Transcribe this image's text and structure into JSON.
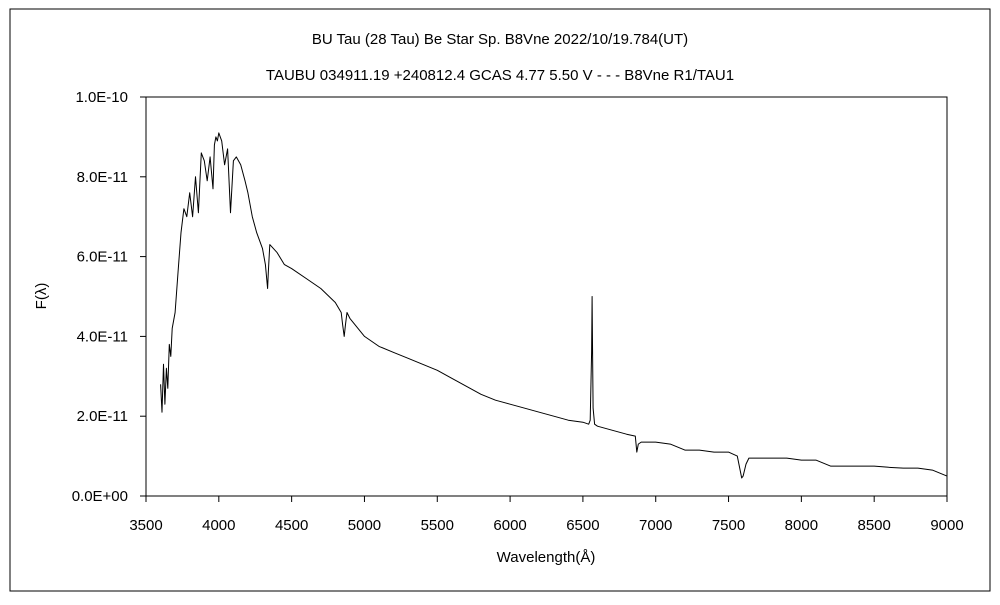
{
  "chart_data": {
    "type": "line",
    "title": "BU Tau (28 Tau)   Be Star   Sp. B8Vne   2022/10/19.784(UT)",
    "subtitle": "TAUBU 034911.19 +240812.4 GCAS 4.77 5.50 V - - - B8Vne R1/TAU1",
    "xlabel": "Wavelength(Å)",
    "ylabel": "F(λ)",
    "xlim": [
      3500,
      9000
    ],
    "ylim": [
      0,
      1e-10
    ],
    "x_ticks": [
      3500,
      4000,
      4500,
      5000,
      5500,
      6000,
      6500,
      7000,
      7500,
      8000,
      8500,
      9000
    ],
    "x_tick_labels": [
      "3500",
      "4000",
      "4500",
      "5000",
      "5500",
      "6000",
      "6500",
      "7000",
      "7500",
      "8000",
      "8500",
      "9000"
    ],
    "y_ticks": [
      0,
      2e-11,
      4e-11,
      6e-11,
      8e-11,
      1e-10
    ],
    "y_tick_labels": [
      "0.0E+00",
      "2.0E-11",
      "4.0E-11",
      "6.0E-11",
      "8.0E-11",
      "1.0E-10"
    ],
    "grid": false,
    "legend": "none",
    "series": [
      {
        "color": "#000000",
        "x": [
          3600,
          3610,
          3620,
          3630,
          3640,
          3650,
          3660,
          3670,
          3680,
          3700,
          3720,
          3740,
          3760,
          3780,
          3800,
          3820,
          3840,
          3860,
          3880,
          3900,
          3920,
          3940,
          3960,
          3970,
          3980,
          3990,
          4000,
          4020,
          4040,
          4060,
          4080,
          4100,
          4120,
          4150,
          4180,
          4200,
          4230,
          4260,
          4300,
          4320,
          4335,
          4340,
          4350,
          4400,
          4450,
          4500,
          4600,
          4700,
          4800,
          4840,
          4850,
          4861,
          4870,
          4880,
          4900,
          5000,
          5100,
          5200,
          5300,
          5400,
          5500,
          5600,
          5700,
          5800,
          5900,
          6000,
          6100,
          6200,
          6300,
          6400,
          6500,
          6540,
          6550,
          6560,
          6563,
          6566,
          6570,
          6580,
          6600,
          6700,
          6800,
          6860,
          6870,
          6880,
          6900,
          7000,
          7100,
          7200,
          7300,
          7400,
          7500,
          7560,
          7590,
          7600,
          7620,
          7640,
          7700,
          7800,
          7900,
          8000,
          8100,
          8200,
          8300,
          8400,
          8500,
          8600,
          8700,
          8800,
          8900,
          9000
        ],
        "y": [
          2.8e-11,
          2.1e-11,
          3.3e-11,
          2.3e-11,
          3.2e-11,
          2.7e-11,
          3.8e-11,
          3.5e-11,
          4.2e-11,
          4.6e-11,
          5.6e-11,
          6.6e-11,
          7.2e-11,
          7e-11,
          7.6e-11,
          7e-11,
          8e-11,
          7.1e-11,
          8.6e-11,
          8.4e-11,
          7.9e-11,
          8.5e-11,
          7.7e-11,
          8.8e-11,
          9e-11,
          8.9e-11,
          9.1e-11,
          8.9e-11,
          8.3e-11,
          8.7e-11,
          7.1e-11,
          8.4e-11,
          8.5e-11,
          8.3e-11,
          7.9e-11,
          7.6e-11,
          7e-11,
          6.6e-11,
          6.2e-11,
          5.8e-11,
          5.2e-11,
          5.6e-11,
          6.3e-11,
          6.1e-11,
          5.8e-11,
          5.7e-11,
          5.45e-11,
          5.2e-11,
          4.85e-11,
          4.6e-11,
          4.3e-11,
          4e-11,
          4.3e-11,
          4.6e-11,
          4.45e-11,
          4e-11,
          3.75e-11,
          3.6e-11,
          3.45e-11,
          3.3e-11,
          3.15e-11,
          2.95e-11,
          2.75e-11,
          2.55e-11,
          2.4e-11,
          2.3e-11,
          2.2e-11,
          2.1e-11,
          2e-11,
          1.9e-11,
          1.85e-11,
          1.8e-11,
          1.9e-11,
          3.6e-11,
          5e-11,
          3.8e-11,
          2.2e-11,
          1.8e-11,
          1.75e-11,
          1.65e-11,
          1.55e-11,
          1.5e-11,
          1.1e-11,
          1.3e-11,
          1.35e-11,
          1.35e-11,
          1.3e-11,
          1.15e-11,
          1.15e-11,
          1.1e-11,
          1.1e-11,
          1e-11,
          4.5e-12,
          5e-12,
          8e-12,
          9.5e-12,
          9.5e-12,
          9.5e-12,
          9.5e-12,
          9e-12,
          9e-12,
          7.5e-12,
          7.5e-12,
          7.5e-12,
          7.5e-12,
          7.2e-12,
          7e-12,
          7e-12,
          6.5e-12,
          5e-12
        ]
      }
    ]
  }
}
